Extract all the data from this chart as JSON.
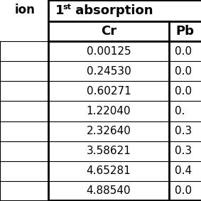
{
  "cr_values": [
    "0.00125",
    "0.24530",
    "0.60271",
    "1.22040",
    "2.32640",
    "3.58621",
    "4.65281",
    "4.88540"
  ],
  "pb_partial": [
    "0.0",
    "0.0",
    "0.0",
    "0.",
    "0.3",
    "0.3",
    "0.4",
    "0.0"
  ],
  "bg_color": "white",
  "figsize": [
    2.83,
    2.83
  ],
  "dpi": 100,
  "left_label": "ion",
  "cr_header": "Cr",
  "pb_header": "Pb",
  "abs_header_1": "1",
  "abs_header_sup": "st",
  "abs_header_2": " absorption",
  "lw_thick": 2.0,
  "lw_thin": 0.8
}
